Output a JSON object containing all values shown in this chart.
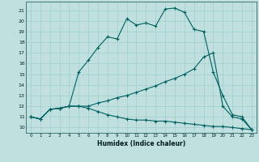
{
  "xlabel": "Humidex (Indice chaleur)",
  "bg_color": "#c0e0e0",
  "line_color": "#006060",
  "grid_color": "#a0cccc",
  "ylim": [
    9.5,
    21.8
  ],
  "xlim": [
    -0.5,
    23.5
  ],
  "yticks": [
    10,
    11,
    12,
    13,
    14,
    15,
    16,
    17,
    18,
    19,
    20,
    21
  ],
  "xticks": [
    0,
    1,
    2,
    3,
    4,
    5,
    6,
    7,
    8,
    9,
    10,
    11,
    12,
    13,
    14,
    15,
    16,
    17,
    18,
    19,
    20,
    21,
    22,
    23
  ],
  "line1_x": [
    0,
    1,
    2,
    3,
    4,
    5,
    6,
    7,
    8,
    9,
    10,
    11,
    12,
    13,
    14,
    15,
    16,
    17,
    18,
    19,
    20,
    21,
    22,
    23
  ],
  "line1_y": [
    11.0,
    10.8,
    11.7,
    11.8,
    12.0,
    15.2,
    16.3,
    17.5,
    18.5,
    18.3,
    20.2,
    19.6,
    19.8,
    19.5,
    21.1,
    21.2,
    20.8,
    19.2,
    19.0,
    15.2,
    13.0,
    11.2,
    11.0,
    9.8
  ],
  "line2_x": [
    0,
    1,
    2,
    3,
    4,
    5,
    6,
    7,
    8,
    9,
    10,
    11,
    12,
    13,
    14,
    15,
    16,
    17,
    18,
    19,
    20,
    21,
    22,
    23
  ],
  "line2_y": [
    11.0,
    10.8,
    11.7,
    11.8,
    12.0,
    12.0,
    12.0,
    12.3,
    12.5,
    12.8,
    13.0,
    13.3,
    13.6,
    13.9,
    14.3,
    14.6,
    15.0,
    15.5,
    16.6,
    17.0,
    12.0,
    11.0,
    10.8,
    9.8
  ],
  "line3_x": [
    0,
    1,
    2,
    3,
    4,
    5,
    6,
    7,
    8,
    9,
    10,
    11,
    12,
    13,
    14,
    15,
    16,
    17,
    18,
    19,
    20,
    21,
    22,
    23
  ],
  "line3_y": [
    11.0,
    10.8,
    11.7,
    11.8,
    12.0,
    12.0,
    11.8,
    11.5,
    11.2,
    11.0,
    10.8,
    10.7,
    10.7,
    10.6,
    10.6,
    10.5,
    10.4,
    10.3,
    10.2,
    10.1,
    10.1,
    10.0,
    9.9,
    9.8
  ]
}
